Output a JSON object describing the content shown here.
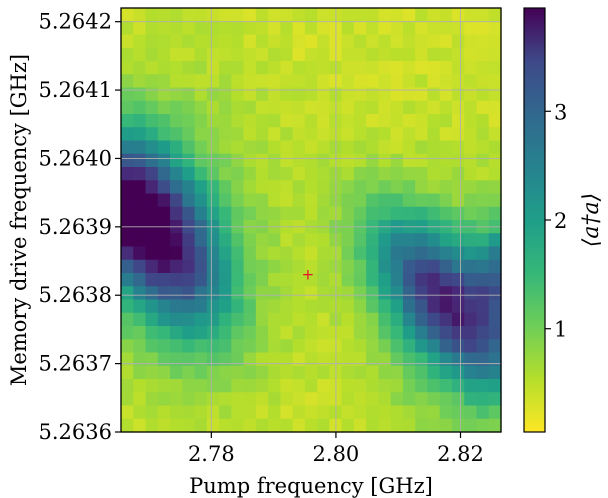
{
  "chart_data": {
    "type": "heatmap",
    "title": "",
    "xlabel": "Pump frequency [GHz]",
    "ylabel": "Memory drive frequency [GHz]",
    "colorbar_label": "⟨a†a⟩",
    "xlim": [
      2.7655,
      2.8265
    ],
    "ylim": [
      5.2636,
      5.26422
    ],
    "x_ticks": [
      2.78,
      2.8,
      2.82
    ],
    "x_tick_labels": [
      "2.78",
      "2.80",
      "2.82"
    ],
    "y_ticks": [
      5.2636,
      5.2637,
      5.2638,
      5.2639,
      5.264,
      5.2641,
      5.2642
    ],
    "y_tick_labels": [
      "5.2636",
      "5.2637",
      "5.2638",
      "5.2639",
      "5.2640",
      "5.2641",
      "5.2642"
    ],
    "colorbar_range": [
      0.05,
      3.95
    ],
    "colorbar_ticks": [
      1,
      2,
      3
    ],
    "colorbar_tick_labels": [
      "1",
      "2",
      "3"
    ],
    "colormap": "viridis (reversed: yellow = low, dark purple = high)",
    "grid": true,
    "grid_size": {
      "cols": 31,
      "rows": 32
    },
    "features": [
      {
        "region": "upper-left blob",
        "x_center": 2.7715,
        "y_center": 5.26392,
        "peak_value": 3.6
      },
      {
        "region": "lower-right blob",
        "x_center": 2.8225,
        "y_center": 5.26378,
        "peak_value": 3.9
      }
    ],
    "marker": {
      "symbol": "+",
      "color": "#e8112d",
      "x": 2.7955,
      "y": 5.26383
    }
  }
}
